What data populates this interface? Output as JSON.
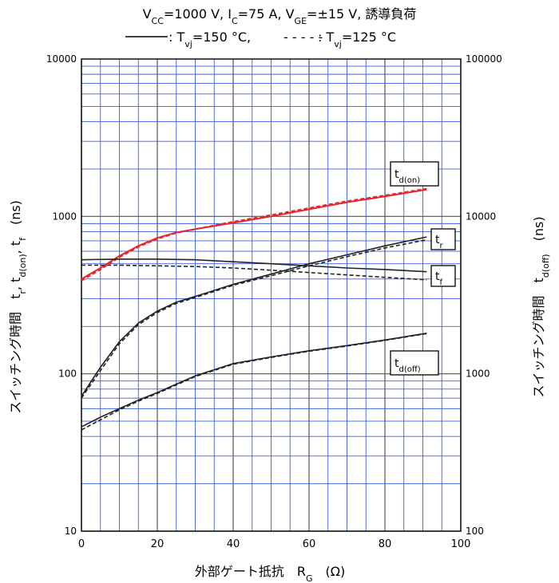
{
  "chart_data": {
    "type": "line",
    "title_line1": {
      "parts": [
        {
          "t": "V",
          "s": "normal"
        },
        {
          "t": "CC",
          "s": "sub"
        },
        {
          "t": "=1000  V,  I",
          "s": "normal"
        },
        {
          "t": "C",
          "s": "sub"
        },
        {
          "t": "=75  A,  V",
          "s": "normal"
        },
        {
          "t": "GE",
          "s": "sub"
        },
        {
          "t": "=±15  V,  誘導負荷",
          "s": "normal"
        }
      ]
    },
    "title_line2": {
      "solid_label": ": T",
      "solid_sub": "vj",
      "solid_value": "=150 °C,",
      "dash_marker": "- - - - -",
      "dash_label": ": T",
      "dash_sub": "vj",
      "dash_value": "=125 °C"
    },
    "xlabel": "外部ゲート抵抗　R",
    "xlabel_sub": "G",
    "xlabel_unit": "(Ω)",
    "ylabel_left": "スイッチング時間　t",
    "ylabel_left_parts": [
      {
        "t": "スイッチング時間　t",
        "s": "normal"
      },
      {
        "t": "r",
        "s": "sub"
      },
      {
        "t": ", t",
        "s": "normal"
      },
      {
        "t": "d(on)",
        "s": "sub"
      },
      {
        "t": ", t",
        "s": "normal"
      },
      {
        "t": "f",
        "s": "sub"
      },
      {
        "t": "　(ns)",
        "s": "normal"
      }
    ],
    "ylabel_right_parts": [
      {
        "t": "スイッチング時間　t",
        "s": "normal"
      },
      {
        "t": "d(off)",
        "s": "sub"
      },
      {
        "t": "　(ns)",
        "s": "normal"
      }
    ],
    "xlim": [
      0,
      100
    ],
    "ylim_left": [
      10,
      10000
    ],
    "ylim_right": [
      100,
      100000
    ],
    "y_scale": "log",
    "x_ticks": [
      "0",
      "20",
      "40",
      "60",
      "80",
      "100"
    ],
    "x_tick_values": [
      0,
      20,
      40,
      60,
      80,
      100
    ],
    "y_left_ticks": [
      "10",
      "100",
      "1000",
      "10000"
    ],
    "y_left_tick_values": [
      10,
      100,
      1000,
      10000
    ],
    "y_right_ticks": [
      "100",
      "1000",
      "10000",
      "100000"
    ],
    "grid": true,
    "colors": {
      "grid_minor": "#3a5fe0",
      "grid_major": "#555555",
      "td_on": "#e8262c",
      "others": "#222222"
    },
    "series": [
      {
        "name": "td(on)",
        "axis": "left",
        "style": "solid",
        "color": "#e8262c",
        "x": [
          0,
          5,
          10,
          15,
          20,
          25,
          30,
          40,
          50,
          60,
          70,
          80,
          91
        ],
        "y": [
          400,
          470,
          560,
          650,
          730,
          790,
          830,
          910,
          1000,
          1110,
          1230,
          1340,
          1480
        ]
      },
      {
        "name": "td(on)",
        "axis": "left",
        "style": "dashed",
        "color": "#e8262c",
        "x": [
          0,
          5,
          10,
          15,
          20,
          25,
          30,
          40,
          50,
          60,
          70,
          80,
          91
        ],
        "y": [
          390,
          460,
          550,
          640,
          720,
          785,
          830,
          925,
          1020,
          1130,
          1250,
          1360,
          1500
        ]
      },
      {
        "name": "tr",
        "axis": "left",
        "style": "solid",
        "color": "#222222",
        "x": [
          0,
          5,
          10,
          15,
          20,
          25,
          30,
          40,
          50,
          60,
          70,
          80,
          91
        ],
        "y": [
          72,
          110,
          160,
          210,
          250,
          285,
          310,
          370,
          430,
          500,
          570,
          650,
          740
        ]
      },
      {
        "name": "tr",
        "axis": "left",
        "style": "dashed",
        "color": "#222222",
        "x": [
          0,
          5,
          10,
          15,
          20,
          25,
          30,
          40,
          50,
          60,
          70,
          80,
          91
        ],
        "y": [
          70,
          105,
          155,
          205,
          245,
          280,
          305,
          365,
          420,
          485,
          555,
          630,
          710
        ]
      },
      {
        "name": "tf",
        "axis": "left",
        "style": "solid",
        "color": "#222222",
        "x": [
          0,
          10,
          20,
          30,
          40,
          50,
          60,
          70,
          80,
          91
        ],
        "y": [
          530,
          535,
          535,
          530,
          515,
          500,
          485,
          470,
          460,
          445
        ]
      },
      {
        "name": "tf",
        "axis": "left",
        "style": "dashed",
        "color": "#222222",
        "x": [
          0,
          10,
          20,
          30,
          40,
          50,
          60,
          70,
          80,
          91
        ],
        "y": [
          490,
          490,
          485,
          480,
          470,
          455,
          440,
          425,
          410,
          395
        ]
      },
      {
        "name": "td(off)",
        "axis": "right",
        "style": "solid",
        "color": "#222222",
        "x": [
          0,
          5,
          10,
          15,
          20,
          25,
          30,
          40,
          50,
          60,
          70,
          80,
          91
        ],
        "y": [
          460,
          530,
          600,
          680,
          760,
          860,
          970,
          1160,
          1280,
          1400,
          1510,
          1640,
          1810
        ]
      },
      {
        "name": "td(off)",
        "axis": "right",
        "style": "dashed",
        "color": "#222222",
        "x": [
          0,
          5,
          10,
          15,
          20,
          25,
          30,
          40,
          50,
          60,
          70,
          80,
          91
        ],
        "y": [
          440,
          510,
          590,
          670,
          750,
          850,
          960,
          1150,
          1270,
          1390,
          1500,
          1630,
          1800
        ]
      }
    ],
    "annotations": [
      {
        "id": "td-on",
        "main": "t",
        "sub": "d(on)"
      },
      {
        "id": "tr",
        "main": "t",
        "sub": "r"
      },
      {
        "id": "tf",
        "main": "t",
        "sub": "f"
      },
      {
        "id": "td-off",
        "main": "t",
        "sub": "d(off)"
      }
    ]
  }
}
